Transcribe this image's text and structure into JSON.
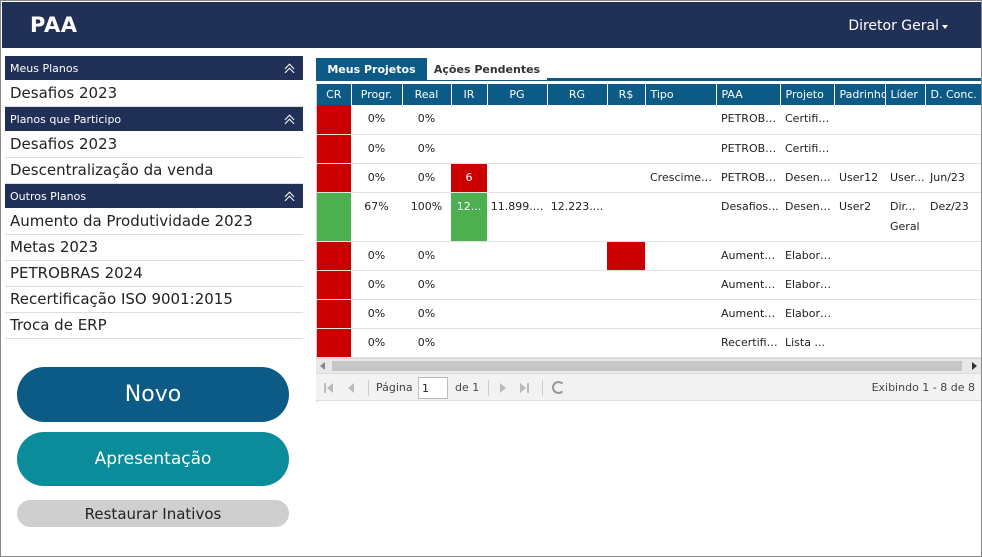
{
  "header": {
    "title": "PAA",
    "user": "Diretor Geral"
  },
  "sidebar": {
    "sections": [
      {
        "title": "Meus Planos",
        "items": [
          "Desafios 2023"
        ]
      },
      {
        "title": "Planos que Participo",
        "items": [
          "Desafios 2023",
          "Descentralização da venda"
        ]
      },
      {
        "title": "Outros Planos",
        "items": [
          "Aumento da Produtividade 2023",
          "Metas 2023",
          "PETROBRAS 2024",
          "Recertificação ISO 9001:2015",
          "Troca de ERP"
        ]
      }
    ],
    "buttons": {
      "novo": "Novo",
      "apresentacao": "Apresentação",
      "restaurar": "Restaurar Inativos"
    }
  },
  "tabs": {
    "active": "Meus Projetos",
    "inactive": "Ações Pendentes"
  },
  "grid": {
    "columns": [
      "CR",
      "Progr.",
      "Real",
      "IR",
      "PG",
      "RG",
      "R$",
      "Tipo",
      "PAA",
      "Projeto",
      "Padrinho",
      "Líder",
      "D. Conc."
    ],
    "rows": [
      {
        "cr": "red",
        "progr": "0%",
        "real": "0%",
        "ir": "",
        "ir_color": "",
        "pg": "",
        "rg": "",
        "rs_color": "",
        "tipo": "",
        "paa": "PETROBRAS...",
        "projeto": "Certificação...",
        "padrinho": "",
        "lider": "",
        "dconc": ""
      },
      {
        "cr": "red",
        "progr": "0%",
        "real": "0%",
        "ir": "",
        "ir_color": "",
        "pg": "",
        "rg": "",
        "rs_color": "",
        "tipo": "",
        "paa": "PETROBRAS...",
        "projeto": "Certificação...",
        "padrinho": "",
        "lider": "",
        "dconc": ""
      },
      {
        "cr": "red",
        "progr": "0%",
        "real": "0%",
        "ir": "6",
        "ir_color": "red",
        "pg": "",
        "rg": "",
        "rs_color": "",
        "tipo": "Crescimento...",
        "paa": "PETROBRAS...",
        "projeto": "Desenvolvimento...",
        "padrinho": "User12",
        "lider": "User...",
        "dconc": "Jun/23"
      },
      {
        "cr": "green",
        "progr": "67%",
        "real": "100%",
        "ir": "12...",
        "ir_color": "green",
        "pg": "11.899....",
        "rg": "12.223....",
        "rs_color": "",
        "tipo": "",
        "paa": "Desafios...",
        "projeto": "Desenvolvimento...",
        "padrinho": "User2",
        "lider": "Diretor Geral",
        "lider_display": "Dir... Geral",
        "dconc": "Dez/23"
      },
      {
        "cr": "red",
        "progr": "0%",
        "real": "0%",
        "ir": "",
        "ir_color": "",
        "pg": "",
        "rg": "",
        "rs_color": "red",
        "tipo": "",
        "paa": "Aumento...",
        "projeto": "Elaborar...",
        "padrinho": "",
        "lider": "",
        "dconc": ""
      },
      {
        "cr": "red",
        "progr": "0%",
        "real": "0%",
        "ir": "",
        "ir_color": "",
        "pg": "",
        "rg": "",
        "rs_color": "",
        "tipo": "",
        "paa": "Aumento...",
        "projeto": "Elaborar...",
        "padrinho": "",
        "lider": "",
        "dconc": ""
      },
      {
        "cr": "red",
        "progr": "0%",
        "real": "0%",
        "ir": "",
        "ir_color": "",
        "pg": "",
        "rg": "",
        "rs_color": "",
        "tipo": "",
        "paa": "Aumento...",
        "projeto": "Elaborar...",
        "padrinho": "",
        "lider": "",
        "dconc": ""
      },
      {
        "cr": "red",
        "progr": "0%",
        "real": "0%",
        "ir": "",
        "ir_color": "",
        "pg": "",
        "rg": "",
        "rs_color": "",
        "tipo": "",
        "paa": "Recertificação...",
        "projeto": "Lista ...",
        "padrinho": "",
        "lider": "",
        "dconc": ""
      }
    ]
  },
  "pager": {
    "page_label": "Página",
    "page_value": "1",
    "of_label": "de 1",
    "info": "Exibindo 1 - 8 de 8"
  },
  "colors": {
    "navy": "#213056",
    "tab_blue": "#0c5a86",
    "teal": "#0b8c9a",
    "status_red": "#cc0000",
    "status_green": "#4caf50"
  }
}
